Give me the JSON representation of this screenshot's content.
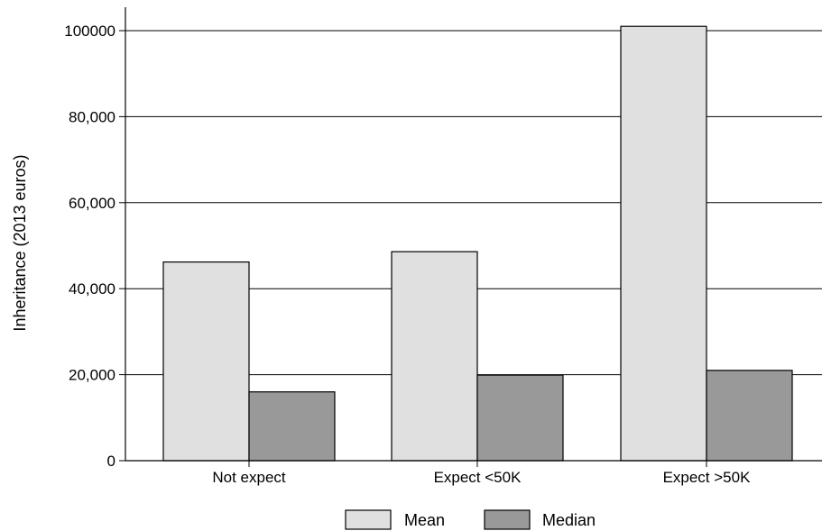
{
  "chart_data": {
    "type": "bar",
    "title": "",
    "xlabel": "",
    "ylabel": "Inheritance (2013 euros)",
    "categories": [
      "Not expect",
      "Expect <50K",
      "Expect >50K"
    ],
    "series": [
      {
        "name": "Mean",
        "values": [
          46200,
          48600,
          101000
        ],
        "color": "#e0e0e0"
      },
      {
        "name": "Median",
        "values": [
          16000,
          19900,
          21000
        ],
        "color": "#999999"
      }
    ],
    "ylim": [
      0,
      105000
    ],
    "yticks": [
      {
        "value": 0,
        "label": "0"
      },
      {
        "value": 20000,
        "label": "20,000"
      },
      {
        "value": 40000,
        "label": "40,000"
      },
      {
        "value": 60000,
        "label": "60,000"
      },
      {
        "value": 80000,
        "label": "80,000"
      },
      {
        "value": 100000,
        "label": "100000"
      }
    ],
    "grid": true,
    "legend": "bottom-center"
  }
}
